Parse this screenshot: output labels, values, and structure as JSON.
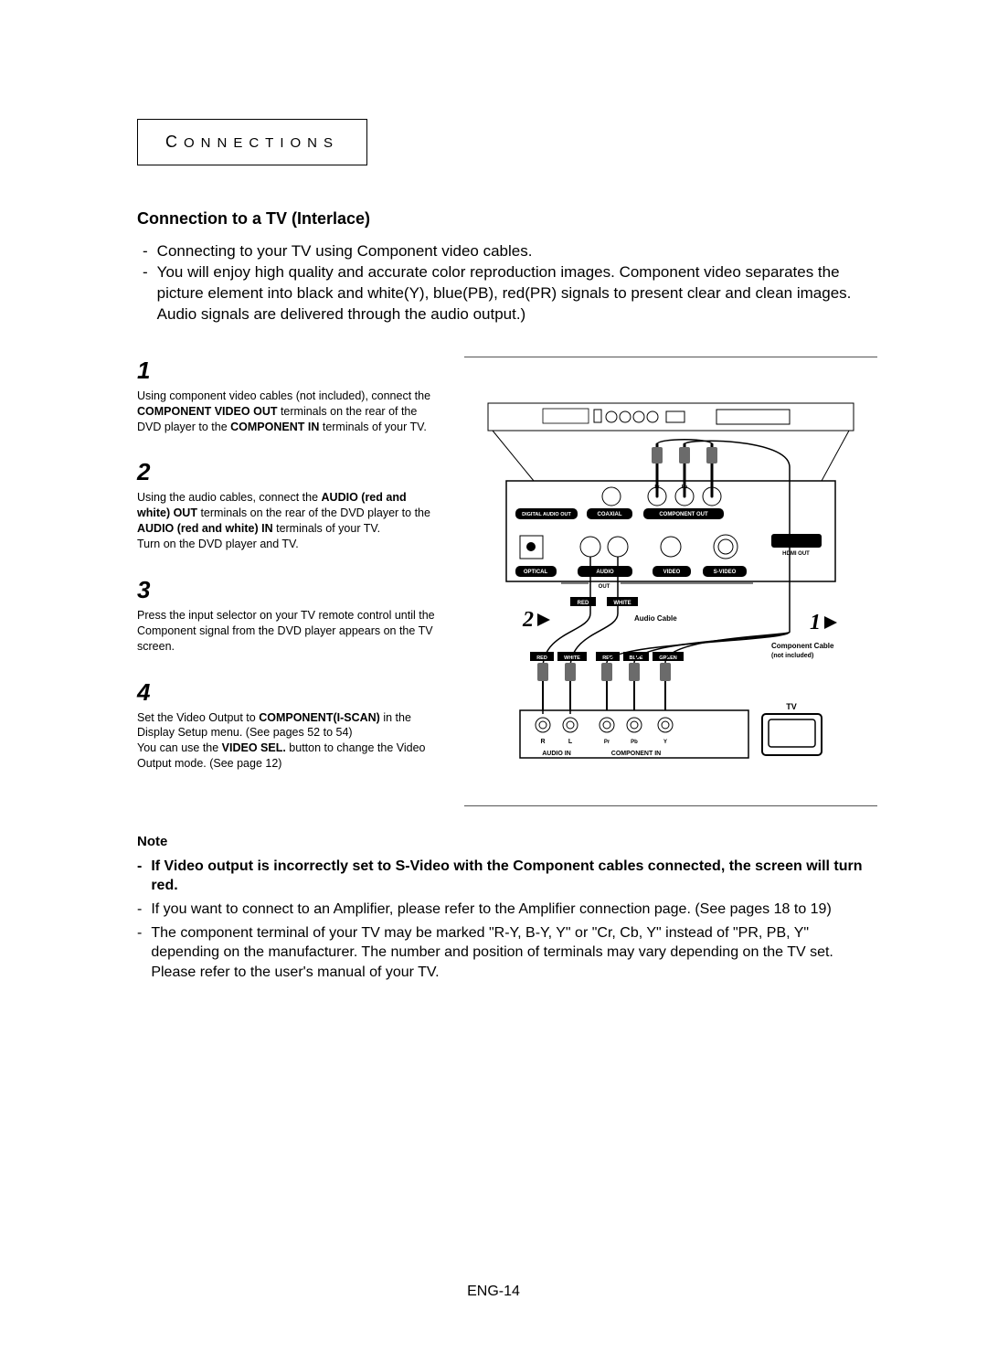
{
  "chapter": {
    "prefix": "C",
    "rest": "ONNECTIONS"
  },
  "section_title": "Connection to a TV (Interlace)",
  "intro": {
    "items": [
      "Connecting to your TV using Component video cables.",
      "You will enjoy high quality and accurate color reproduction images. Component video separates the picture element into black and white(Y), blue(PB), red(PR) signals to present clear and clean images. Audio signals are delivered through the audio output.)"
    ]
  },
  "steps": [
    {
      "num": "1",
      "parts": [
        {
          "t": "text",
          "v": "Using component video cables (not included), connect the "
        },
        {
          "t": "bold",
          "v": "COMPONENT VIDEO OUT"
        },
        {
          "t": "text",
          "v": " terminals on the rear of the DVD player to the "
        },
        {
          "t": "bold",
          "v": "COMPONENT IN"
        },
        {
          "t": "text",
          "v": " terminals of your TV."
        }
      ]
    },
    {
      "num": "2",
      "parts": [
        {
          "t": "text",
          "v": "Using the audio cables, connect the "
        },
        {
          "t": "bold",
          "v": "AUDIO (red and white) OUT"
        },
        {
          "t": "text",
          "v": " terminals on the rear of the DVD player to the "
        },
        {
          "t": "bold",
          "v": "AUDIO (red and white) IN"
        },
        {
          "t": "text",
          "v": " terminals of your TV."
        },
        {
          "t": "br"
        },
        {
          "t": "text",
          "v": "Turn on the DVD player and TV."
        }
      ]
    },
    {
      "num": "3",
      "parts": [
        {
          "t": "text",
          "v": "Press the input selector on your TV remote control until the Component signal from the DVD player appears on the TV screen."
        }
      ]
    },
    {
      "num": "4",
      "parts": [
        {
          "t": "text",
          "v": "Set the Video Output to "
        },
        {
          "t": "bold",
          "v": "COMPONENT(I-SCAN)"
        },
        {
          "t": "text",
          "v": " in the Display Setup menu. (See pages 52 to 54)"
        },
        {
          "t": "br"
        },
        {
          "t": "text",
          "v": "You can use the "
        },
        {
          "t": "bold",
          "v": "VIDEO SEL."
        },
        {
          "t": "text",
          "v": " button to change the Video Output mode. (See page 12)"
        }
      ]
    }
  ],
  "note": {
    "title": "Note",
    "items": [
      {
        "bold": true,
        "text": "If Video output is incorrectly set to S-Video with the Component cables connected, the screen will turn red."
      },
      {
        "bold": false,
        "text": "If you want to connect to an Amplifier, please refer to the Amplifier connection page. (See pages 18 to 19)"
      },
      {
        "bold": false,
        "text": "The component terminal of your TV may be marked \"R-Y, B-Y, Y\" or \"Cr, Cb, Y\" instead of \"PR, PB, Y\" depending on the manufacturer. The number and position of terminals may vary depending on the TV set. Please refer to the user's manual of your TV."
      }
    ]
  },
  "page_number": "ENG-14",
  "diagram": {
    "top_row_labels": [
      "DIGITAL AUDIO OUT",
      "COAXIAL",
      "COMPONENT OUT"
    ],
    "bottom_row_labels": [
      "OPTICAL",
      "AUDIO",
      "VIDEO",
      "S-VIDEO",
      "HDMI OUT"
    ],
    "out_label": "OUT",
    "audio_cable": {
      "label": "Audio Cable",
      "red": "RED",
      "white": "WHITE"
    },
    "component_cable": {
      "label_line1": "Component Cable",
      "label_line2": "(not  included)",
      "red": "RED",
      "white": "WHITE",
      "red2": "RED",
      "blue": "BLUE",
      "green": "GREEN"
    },
    "step2_marker": "2",
    "step1_marker": "1",
    "tv": {
      "label": "TV",
      "audio_in": "AUDIO IN",
      "component_in": "COMPONENT IN",
      "rl": [
        "R",
        "L"
      ],
      "pbpy": [
        "Pr",
        "Pb",
        "Y"
      ]
    }
  },
  "colors": {
    "text": "#000000",
    "bg": "#ffffff",
    "grey": "#6b6b6b"
  }
}
